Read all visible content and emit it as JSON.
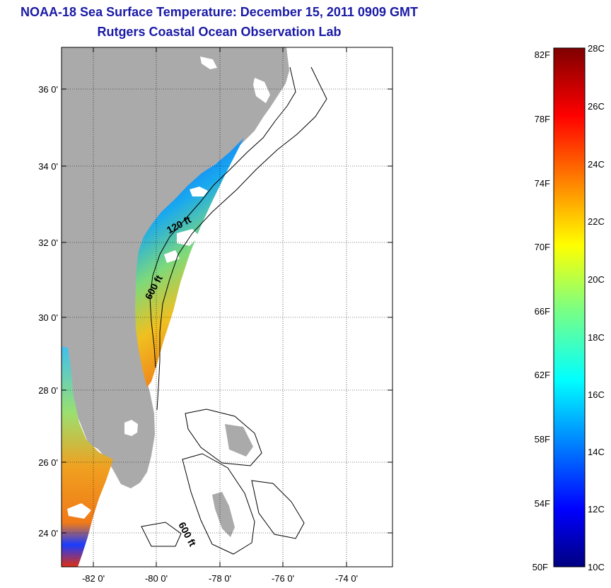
{
  "title": "NOAA-18 Sea Surface Temperature:  December 15, 2011 0909 GMT",
  "subtitle": "Rutgers Coastal Ocean Observation Lab",
  "map": {
    "lon_ticks": [
      "-82 0'",
      "-80 0'",
      "-78 0'",
      "-76 0'",
      "-74 0'"
    ],
    "lat_ticks": [
      "36 0'",
      "34 0'",
      "32 0'",
      "30 0'",
      "28 0'",
      "26 0'",
      "24 0'"
    ],
    "contour_labels": [
      "120 ft",
      "600 ft",
      "600 ft"
    ],
    "colors": {
      "land": "#aaaaaa",
      "water": "#ffffff",
      "grid": "#000000"
    }
  },
  "colorbar": {
    "fahrenheit_labels": [
      "82F",
      "78F",
      "74F",
      "70F",
      "66F",
      "62F",
      "58F",
      "54F",
      "50F"
    ],
    "celsius_labels": [
      "28C",
      "26C",
      "24C",
      "22C",
      "20C",
      "18C",
      "16C",
      "14C",
      "12C",
      "10C"
    ],
    "range_c": [
      10,
      28
    ],
    "colormap": "jet"
  }
}
